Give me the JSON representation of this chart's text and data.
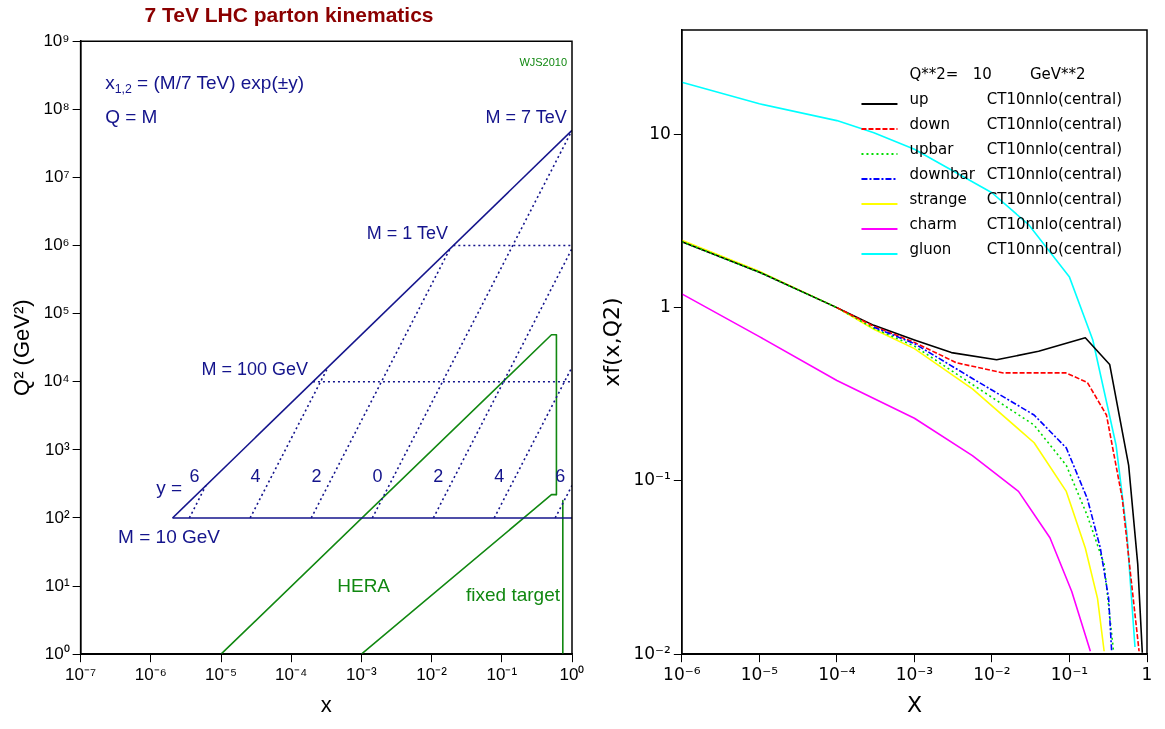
{
  "chart_data": [
    {
      "type": "line",
      "title": "7 TeV LHC parton kinematics",
      "xlabel": "x",
      "ylabel": "Q² (GeV²)",
      "log": "xy",
      "xlim": [
        1e-07,
        1
      ],
      "ylim": [
        1,
        1000000000.0
      ],
      "xticks": [
        {
          "value": 1e-07,
          "label": "10⁻⁷"
        },
        {
          "value": 1e-06,
          "label": "10⁻⁶"
        },
        {
          "value": 1e-05,
          "label": "10⁻⁵"
        },
        {
          "value": 0.0001,
          "label": "10⁻⁴"
        },
        {
          "value": 0.001,
          "label": "10⁻³"
        },
        {
          "value": 0.01,
          "label": "10⁻²"
        },
        {
          "value": 0.1,
          "label": "10⁻¹"
        },
        {
          "value": 1,
          "label": "10⁰"
        }
      ],
      "yticks": [
        {
          "value": 1,
          "label": "10⁰"
        },
        {
          "value": 10,
          "label": "10¹"
        },
        {
          "value": 100,
          "label": "10²"
        },
        {
          "value": 1000,
          "label": "10³"
        },
        {
          "value": 10000,
          "label": "10⁴"
        },
        {
          "value": 100000,
          "label": "10⁵"
        },
        {
          "value": 1000000,
          "label": "10⁶"
        },
        {
          "value": 10000000,
          "label": "10⁷"
        },
        {
          "value": 100000000,
          "label": "10⁸"
        },
        {
          "value": 1000000000,
          "label": "10⁹"
        }
      ],
      "series": [
        {
          "color": "#14148c",
          "line_style": "solid",
          "x": [
            2.04e-06,
            1
          ],
          "values": [
            100,
            49000000.0
          ]
        },
        {
          "color": "#14148c",
          "line_style": "solid",
          "x": [
            2.04e-06,
            1
          ],
          "values": [
            100,
            100
          ]
        },
        {
          "color": "#14148c",
          "line_style": "dotted",
          "x": [
            0.0204,
            1
          ],
          "values": [
            1000000,
            1000000
          ]
        },
        {
          "color": "#14148c",
          "line_style": "dotted",
          "x": [
            0.000204,
            1
          ],
          "values": [
            10000,
            10000
          ]
        },
        {
          "color": "#14148c",
          "line_style": "dotted",
          "x": [
            3.54e-06,
            6.1e-06
          ],
          "values": [
            100,
            300
          ]
        },
        {
          "color": "#14148c",
          "line_style": "dotted",
          "x": [
            2.6e-05,
            0.000335
          ],
          "values": [
            100,
            16400
          ]
        },
        {
          "color": "#14148c",
          "line_style": "dotted",
          "x": [
            0.000193,
            0.0183
          ],
          "values": [
            100,
            900000
          ]
        },
        {
          "color": "#14148c",
          "line_style": "dotted",
          "x": [
            0.00143,
            1
          ],
          "values": [
            100,
            49000000.0
          ]
        },
        {
          "color": "#14148c",
          "line_style": "dotted",
          "x": [
            0.0106,
            1
          ],
          "values": [
            100,
            900000
          ]
        },
        {
          "color": "#14148c",
          "line_style": "dotted",
          "x": [
            0.078,
            1
          ],
          "values": [
            100,
            16400
          ]
        },
        {
          "color": "#14148c",
          "line_style": "dotted",
          "x": [
            0.576,
            1
          ],
          "values": [
            100,
            300
          ]
        },
        {
          "color": "#118811",
          "line_style": "solid",
          "x": [
            1e-05,
            0.51,
            0.6,
            0.6
          ],
          "values": [
            1,
            49000,
            49000,
            220
          ]
        },
        {
          "color": "#118811",
          "line_style": "solid",
          "x": [
            0.001,
            0.51,
            0.6
          ],
          "values": [
            1,
            220,
            220
          ]
        },
        {
          "color": "#118811",
          "line_style": "solid",
          "x": [
            0.74,
            0.74
          ],
          "values": [
            180,
            1
          ]
        }
      ],
      "annotations": [
        "x$_{1,2}$ = (M/7 TeV) exp(±y)",
        "Q = M",
        "WJS2010",
        "M = 10 GeV",
        "y =",
        "HERA",
        "fixed target",
        {
          "text": "M = 7 TeV",
          "x": 1,
          "y": 49000000
        },
        {
          "text": "M = 1 TeV",
          "x": 0.0204,
          "y": 1000000
        },
        {
          "text": "M = 100 GeV",
          "x": 0.000204,
          "y": 10000
        },
        {
          "text": "6",
          "x": 5.82e-06,
          "y": 270
        },
        {
          "text": "4",
          "x": 4.3e-05,
          "y": 270
        },
        {
          "text": "2",
          "x": 0.000318,
          "y": 270
        },
        {
          "text": "0",
          "x": 0.00235,
          "y": 270
        },
        {
          "text": "2",
          "x": 0.01734,
          "y": 270
        },
        {
          "text": "4",
          "x": 0.128,
          "y": 270
        },
        {
          "text": "6",
          "x": 0.947,
          "y": 270
        }
      ]
    },
    {
      "type": "line",
      "xlabel": "X",
      "ylabel": "xf(x,Q2)",
      "log": "xy",
      "xlim": [
        1e-06,
        1
      ],
      "ylim": [
        0.01,
        40
      ],
      "xticks": [
        {
          "value": 1e-06,
          "label": "10⁻⁶"
        },
        {
          "value": 1e-05,
          "label": "10⁻⁵"
        },
        {
          "value": 0.0001,
          "label": "10⁻⁴"
        },
        {
          "value": 0.001,
          "label": "10⁻³"
        },
        {
          "value": 0.01,
          "label": "10⁻²"
        },
        {
          "value": 0.1,
          "label": "10⁻¹"
        },
        1
      ],
      "yticks": [
        {
          "value": 0.01,
          "label": "10⁻²"
        },
        {
          "value": 0.1,
          "label": "10⁻¹"
        },
        1,
        10
      ],
      "legend": "top right",
      "legend_title": "Q**2=   10        GeV**2",
      "series": [
        {
          "name": "up        CT10nnlo(central)",
          "color": "#000000",
          "line_style": "solid",
          "x": [
            1e-06,
            1e-05,
            0.0001,
            0.0003,
            0.001,
            0.003,
            0.0115,
            0.04,
            0.16,
            0.33,
            0.58,
            0.76,
            0.87
          ],
          "values": [
            2.4,
            1.6,
            1.0,
            0.79,
            0.65,
            0.55,
            0.5,
            0.56,
            0.67,
            0.47,
            0.123,
            0.033,
            0.0102
          ]
        },
        {
          "name": "down      CT10nnlo(central)",
          "color": "#ff0000",
          "line_style": "dashed",
          "x": [
            0.0001,
            0.0003,
            0.001,
            0.0035,
            0.014,
            0.09,
            0.17,
            0.3,
            0.48,
            0.63,
            0.79
          ],
          "values": [
            1.0,
            0.78,
            0.63,
            0.48,
            0.42,
            0.42,
            0.37,
            0.24,
            0.079,
            0.026,
            0.0104
          ]
        },
        {
          "name": "upbar     CT10nnlo(central)",
          "color": "#00dd00",
          "line_style": "dotted",
          "x": [
            1e-06,
            1e-05,
            0.0001,
            0.0003,
            0.001,
            0.0056,
            0.035,
            0.091,
            0.17,
            0.28,
            0.37
          ],
          "values": [
            2.4,
            1.6,
            1.0,
            0.76,
            0.6,
            0.36,
            0.21,
            0.123,
            0.063,
            0.033,
            0.0104
          ]
        },
        {
          "name": "downbar CT10nnlo(central)",
          "color": "#0000ff",
          "line_style": "dashdot",
          "x": [
            0.0003,
            0.001,
            0.0056,
            0.035,
            0.091,
            0.17,
            0.25,
            0.32,
            0.35
          ],
          "values": [
            0.77,
            0.62,
            0.39,
            0.24,
            0.155,
            0.079,
            0.041,
            0.021,
            0.0104
          ]
        },
        {
          "name": "strange   CT10nnlo(central)",
          "color": "#ffff00",
          "line_style": "solid",
          "x": [
            1e-06,
            1e-05,
            0.0001,
            0.0003,
            0.001,
            0.0056,
            0.035,
            0.091,
            0.16,
            0.23,
            0.28
          ],
          "values": [
            2.45,
            1.62,
            1.0,
            0.75,
            0.58,
            0.34,
            0.166,
            0.087,
            0.041,
            0.021,
            0.0104
          ]
        },
        {
          "name": "charm     CT10nnlo(central)",
          "color": "#ff00ff",
          "line_style": "solid",
          "x": [
            1e-06,
            1e-05,
            0.0001,
            0.001,
            0.0056,
            0.022,
            0.056,
            0.107,
            0.186
          ],
          "values": [
            1.2,
            0.68,
            0.38,
            0.23,
            0.14,
            0.087,
            0.047,
            0.023,
            0.0104
          ]
        },
        {
          "name": "gluon     CT10nnlo(central)",
          "color": "#00ffff",
          "line_style": "solid",
          "x": [
            1e-06,
            1e-05,
            0.0001,
            0.0003,
            0.001,
            0.01,
            0.03,
            0.1,
            0.2,
            0.4,
            0.55,
            0.7
          ],
          "values": [
            20,
            15,
            12,
            10.2,
            8.2,
            4.6,
            3.0,
            1.5,
            0.65,
            0.16,
            0.05,
            0.011
          ]
        }
      ]
    }
  ]
}
